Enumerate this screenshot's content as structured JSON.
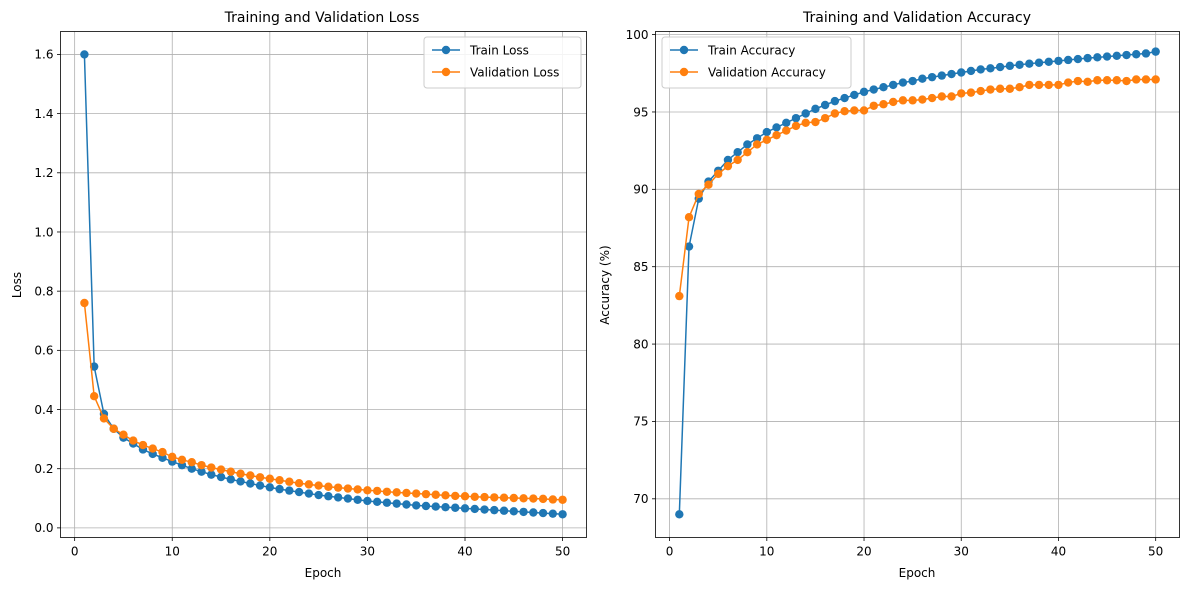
{
  "chart_data": [
    {
      "type": "line",
      "title": "Training and Validation Loss",
      "xlabel": "Epoch",
      "ylabel": "Loss",
      "xlim": [
        -1.45,
        52.45
      ],
      "ylim": [
        -0.0325,
        1.6775
      ],
      "xticks": [
        0,
        10,
        20,
        30,
        40,
        50
      ],
      "yticks": [
        0.0,
        0.2,
        0.4,
        0.6,
        0.8,
        1.0,
        1.2,
        1.4,
        1.6
      ],
      "ytick_labels": [
        "0.0",
        "0.2",
        "0.4",
        "0.6",
        "0.8",
        "1.0",
        "1.2",
        "1.4",
        "1.6"
      ],
      "grid": true,
      "legend_position": "top-right",
      "x": [
        1,
        2,
        3,
        4,
        5,
        6,
        7,
        8,
        9,
        10,
        11,
        12,
        13,
        14,
        15,
        16,
        17,
        18,
        19,
        20,
        21,
        22,
        23,
        24,
        25,
        26,
        27,
        28,
        29,
        30,
        31,
        32,
        33,
        34,
        35,
        36,
        37,
        38,
        39,
        40,
        41,
        42,
        43,
        44,
        45,
        46,
        47,
        48,
        49,
        50
      ],
      "series": [
        {
          "name": "Train Loss",
          "color": "#1f77b4",
          "values": [
            1.6,
            0.545,
            0.385,
            0.335,
            0.305,
            0.285,
            0.265,
            0.25,
            0.237,
            0.224,
            0.212,
            0.2,
            0.19,
            0.18,
            0.172,
            0.164,
            0.157,
            0.15,
            0.143,
            0.137,
            0.131,
            0.126,
            0.121,
            0.116,
            0.111,
            0.107,
            0.103,
            0.099,
            0.095,
            0.091,
            0.088,
            0.085,
            0.082,
            0.079,
            0.076,
            0.074,
            0.072,
            0.07,
            0.068,
            0.066,
            0.064,
            0.062,
            0.06,
            0.058,
            0.056,
            0.054,
            0.052,
            0.05,
            0.048,
            0.046
          ]
        },
        {
          "name": "Validation Loss",
          "color": "#ff7f0e",
          "values": [
            0.76,
            0.445,
            0.37,
            0.335,
            0.315,
            0.295,
            0.28,
            0.268,
            0.256,
            0.24,
            0.23,
            0.222,
            0.212,
            0.204,
            0.197,
            0.19,
            0.183,
            0.177,
            0.171,
            0.166,
            0.161,
            0.156,
            0.151,
            0.147,
            0.143,
            0.139,
            0.136,
            0.133,
            0.13,
            0.127,
            0.125,
            0.122,
            0.12,
            0.118,
            0.116,
            0.114,
            0.112,
            0.11,
            0.108,
            0.107,
            0.105,
            0.104,
            0.103,
            0.102,
            0.101,
            0.1,
            0.099,
            0.098,
            0.096,
            0.095
          ]
        }
      ]
    },
    {
      "type": "line",
      "title": "Training and Validation Accuracy",
      "xlabel": "Epoch",
      "ylabel": "Accuracy (%)",
      "xlim": [
        -1.45,
        52.45
      ],
      "ylim": [
        67.5,
        100.2
      ],
      "xticks": [
        0,
        10,
        20,
        30,
        40,
        50
      ],
      "yticks": [
        70,
        75,
        80,
        85,
        90,
        95,
        100
      ],
      "ytick_labels": [
        "70",
        "75",
        "80",
        "85",
        "90",
        "95",
        "100"
      ],
      "grid": true,
      "legend_position": "top-left",
      "x": [
        1,
        2,
        3,
        4,
        5,
        6,
        7,
        8,
        9,
        10,
        11,
        12,
        13,
        14,
        15,
        16,
        17,
        18,
        19,
        20,
        21,
        22,
        23,
        24,
        25,
        26,
        27,
        28,
        29,
        30,
        31,
        32,
        33,
        34,
        35,
        36,
        37,
        38,
        39,
        40,
        41,
        42,
        43,
        44,
        45,
        46,
        47,
        48,
        49,
        50
      ],
      "series": [
        {
          "name": "Train Accuracy",
          "color": "#1f77b4",
          "values": [
            69.0,
            86.3,
            89.4,
            90.5,
            91.2,
            91.9,
            92.4,
            92.9,
            93.3,
            93.7,
            94.0,
            94.3,
            94.6,
            94.9,
            95.2,
            95.45,
            95.7,
            95.9,
            96.1,
            96.3,
            96.45,
            96.6,
            96.75,
            96.9,
            97.0,
            97.15,
            97.25,
            97.35,
            97.45,
            97.55,
            97.65,
            97.75,
            97.82,
            97.9,
            97.98,
            98.05,
            98.12,
            98.18,
            98.24,
            98.3,
            98.36,
            98.42,
            98.48,
            98.53,
            98.58,
            98.63,
            98.68,
            98.73,
            98.78,
            98.9
          ]
        },
        {
          "name": "Validation Accuracy",
          "color": "#ff7f0e",
          "values": [
            83.1,
            88.2,
            89.7,
            90.3,
            91.0,
            91.5,
            91.9,
            92.4,
            92.9,
            93.2,
            93.5,
            93.8,
            94.1,
            94.3,
            94.35,
            94.6,
            94.9,
            95.05,
            95.1,
            95.1,
            95.4,
            95.5,
            95.65,
            95.75,
            95.75,
            95.8,
            95.9,
            96.0,
            96.0,
            96.2,
            96.25,
            96.35,
            96.45,
            96.5,
            96.5,
            96.6,
            96.75,
            96.75,
            96.75,
            96.75,
            96.9,
            97.0,
            96.95,
            97.05,
            97.05,
            97.05,
            97.0,
            97.1,
            97.1,
            97.1
          ]
        }
      ]
    }
  ]
}
